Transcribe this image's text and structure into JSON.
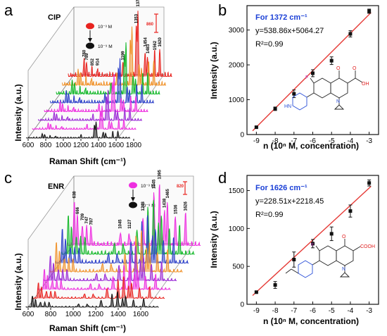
{
  "panels": {
    "a": {
      "letter": "a",
      "drug": "CIP",
      "legend_high": "10⁻³ M",
      "legend_low": "10⁻⁹ M",
      "scale_label": "860"
    },
    "b": {
      "letter": "b"
    },
    "c": {
      "letter": "c",
      "drug": "ENR",
      "legend_high": "10⁻³ M",
      "legend_low": "10⁻⁹ M",
      "scale_label": "820"
    },
    "d": {
      "letter": "d"
    }
  },
  "colors": {
    "red": "#e8231f",
    "orange": "#f0922a",
    "green": "#13b829",
    "blue": "#2b3fc8",
    "purple": "#9a2ad6",
    "magenta": "#ee2fe0",
    "black": "#111111",
    "fit_line": "#e53935",
    "annotation_blue": "#1a3fd6",
    "mol_red": "#e02020",
    "mol_blue": "#2a4fd8",
    "mol_fluoro": "#c040c0"
  },
  "molecules": {
    "cip": {
      "F": "F",
      "O": "O",
      "OH_group": "OH",
      "O2": "O",
      "N": "N",
      "NH": "HN"
    },
    "enr": {
      "F": "F",
      "O": "O",
      "COOH": "COOH",
      "N": "N"
    }
  },
  "chart_data": [
    {
      "id": "a",
      "type": "line",
      "title": "CIP",
      "xlabel": "Raman Shift (cm⁻¹)",
      "ylabel": "Intensity (a.u.)",
      "xlim": [
        600,
        1800
      ],
      "x_ticks": [
        "600",
        "800",
        "1000",
        "1200",
        "1400",
        "1600",
        "1800"
      ],
      "series_order_front_to_back": [
        "10⁻⁹ M",
        "black",
        "magenta",
        "purple",
        "blue",
        "green",
        "orange",
        "10⁻³ M"
      ],
      "peaks": [
        "760",
        "789",
        "852",
        "914",
        "1199",
        "1353",
        "1372",
        "1454",
        "1483",
        "1562",
        "1620"
      ],
      "peak_positions": [
        760,
        789,
        852,
        914,
        1199,
        1353,
        1372,
        1454,
        1483,
        1562,
        1620
      ],
      "peak_heights_top": [
        0.25,
        0.2,
        0.12,
        0.12,
        0.2,
        0.75,
        1.0,
        0.4,
        0.3,
        0.35,
        0.4
      ]
    },
    {
      "id": "b",
      "type": "scatter",
      "xlabel": "n (10ⁿ M, concentration)",
      "ylabel": "Intensity (a.u.)",
      "annotation": "For 1372 cm⁻¹",
      "equation": "y=538.86x+5064.27",
      "r2": "R²=0.99",
      "xlim": [
        -9.5,
        -2.5
      ],
      "ylim": [
        0,
        3700
      ],
      "x_ticks": [
        -9,
        -8,
        -7,
        -6,
        -5,
        -4,
        -3
      ],
      "y_ticks": [
        0,
        1000,
        2000,
        3000
      ],
      "x": [
        -9,
        -8,
        -7,
        -6,
        -5,
        -4,
        -3
      ],
      "y": [
        210,
        740,
        1170,
        1760,
        2120,
        2890,
        3540
      ],
      "err": [
        20,
        50,
        110,
        100,
        110,
        90,
        60
      ],
      "fit": {
        "slope": 538.86,
        "intercept": 5064.27
      }
    },
    {
      "id": "c",
      "type": "line",
      "title": "ENR",
      "xlabel": "Raman Shift (cm⁻¹)",
      "ylabel": "Intensity (a.u.)",
      "xlim": [
        600,
        1800
      ],
      "x_ticks": [
        "600",
        "800",
        "1000",
        "1200",
        "1400",
        "1600"
      ],
      "peaks": [
        "638",
        "666",
        "709",
        "747",
        "787",
        "1045",
        "1127",
        "1248",
        "1345",
        "1395",
        "1438",
        "1465",
        "1536",
        "1626"
      ],
      "peak_positions": [
        638,
        666,
        709,
        747,
        787,
        1045,
        1127,
        1248,
        1345,
        1395,
        1438,
        1465,
        1536,
        1626
      ],
      "peak_heights_top": [
        0.7,
        0.45,
        0.35,
        0.3,
        0.28,
        0.22,
        0.22,
        0.5,
        0.85,
        1.0,
        0.55,
        0.7,
        0.45,
        0.5
      ]
    },
    {
      "id": "d",
      "type": "scatter",
      "xlabel": "n (10ⁿ M, concentration)",
      "ylabel": "Intensity (a.u.)",
      "annotation": "For 1626 cm⁻¹",
      "equation": "y=228.51x+2218.45",
      "r2": "R²=0.99",
      "xlim": [
        -9.5,
        -2.5
      ],
      "ylim": [
        0,
        1700
      ],
      "x_ticks": [
        -9,
        -8,
        -7,
        -6,
        -5,
        -4,
        -3
      ],
      "y_ticks": [
        0,
        500,
        1000,
        1500
      ],
      "x": [
        -9,
        -8,
        -7,
        -6,
        -5,
        -4,
        -3
      ],
      "y": [
        160,
        255,
        590,
        800,
        930,
        1230,
        1600
      ],
      "err": [
        10,
        45,
        100,
        55,
        90,
        80,
        40
      ],
      "fit": {
        "slope": 228.51,
        "intercept": 2218.45
      }
    }
  ]
}
